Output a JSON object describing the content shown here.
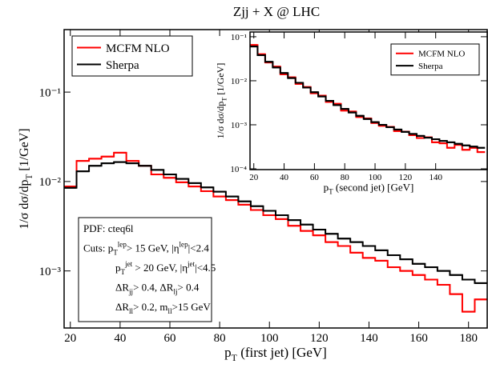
{
  "chart_data": [
    {
      "type": "histogram",
      "title": "Zjj + X @ LHC",
      "xlabel": [
        {
          "t": "p"
        },
        {
          "t": "T",
          "s": "sub"
        },
        {
          "t": " (first jet) [GeV]"
        }
      ],
      "ylabel": [
        {
          "t": "1/σ dσ/dp"
        },
        {
          "t": "T",
          "s": "sub"
        },
        {
          "t": "  [1/GeV]"
        }
      ],
      "bins": [
        17.5,
        22.5,
        27.5,
        32.5,
        37.5,
        42.5,
        47.5,
        52.5,
        57.5,
        62.5,
        67.5,
        72.5,
        77.5,
        82.5,
        87.5,
        92.5,
        97.5,
        102.5,
        107.5,
        112.5,
        117.5,
        122.5,
        127.5,
        132.5,
        137.5,
        142.5,
        147.5,
        152.5,
        157.5,
        162.5,
        167.5,
        172.5,
        177.5,
        182.5,
        187.5
      ],
      "series": [
        {
          "name": "MCFM NLO",
          "color": "#ff0000",
          "values": [
            0.0088,
            0.017,
            0.018,
            0.019,
            0.021,
            0.017,
            0.015,
            0.012,
            0.011,
            0.0098,
            0.0088,
            0.0078,
            0.0068,
            0.0062,
            0.0055,
            0.0048,
            0.0042,
            0.0038,
            0.0032,
            0.0028,
            0.0025,
            0.0021,
            0.0019,
            0.0016,
            0.0014,
            0.0013,
            0.0011,
            0.001,
            0.0009,
            0.0008,
            0.0007,
            0.00055,
            0.00035,
            0.00048
          ]
        },
        {
          "name": "Sherpa",
          "color": "#000000",
          "values": [
            0.0085,
            0.013,
            0.015,
            0.016,
            0.0165,
            0.016,
            0.015,
            0.0135,
            0.012,
            0.0107,
            0.0096,
            0.0086,
            0.0077,
            0.0068,
            0.006,
            0.0053,
            0.0047,
            0.0042,
            0.0037,
            0.0033,
            0.0029,
            0.0026,
            0.0023,
            0.0021,
            0.0019,
            0.0017,
            0.0015,
            0.00135,
            0.0012,
            0.0011,
            0.001,
            0.0009,
            0.0008,
            0.00073
          ]
        }
      ],
      "xlim": [
        17.5,
        187.5
      ],
      "xticks": [
        20,
        40,
        60,
        80,
        100,
        120,
        140,
        160,
        180
      ],
      "ylim": [
        0.00023,
        0.5
      ],
      "log_y": true,
      "yticks": [
        {
          "value": 0.1,
          "label": "10⁻¹"
        },
        {
          "value": 0.01,
          "label": "10⁻²"
        },
        {
          "value": 0.001,
          "label": "10⁻³"
        }
      ],
      "legend": "upper left",
      "annotation": [
        [
          {
            "t": "PDF: cteq6l"
          }
        ],
        [
          {
            "t": "Cuts: p"
          },
          {
            "t": "T",
            "s": "sub"
          },
          {
            "t": "lep",
            "s": "sup"
          },
          {
            "t": "> 15 GeV, |η"
          },
          {
            "t": "lep",
            "s": "sup"
          },
          {
            "t": "|<2.4"
          }
        ],
        [
          {
            "t": "p"
          },
          {
            "t": "T",
            "s": "sub"
          },
          {
            "t": "jet",
            "s": "sup"
          },
          {
            "t": " > 20 GeV, |η"
          },
          {
            "t": "jet",
            "s": "sup"
          },
          {
            "t": "|<4.5"
          }
        ],
        [
          {
            "t": "ΔR"
          },
          {
            "t": "jj",
            "s": "sub"
          },
          {
            "t": "> 0.4, ΔR"
          },
          {
            "t": "lj",
            "s": "sub"
          },
          {
            "t": "> 0.4"
          }
        ],
        [
          {
            "t": "ΔR"
          },
          {
            "t": "ll",
            "s": "sub"
          },
          {
            "t": "> 0.2, m"
          },
          {
            "t": "ll",
            "s": "sub"
          },
          {
            "t": ">15 GeV"
          }
        ]
      ]
    },
    {
      "type": "histogram",
      "xlabel": [
        {
          "t": "p"
        },
        {
          "t": "T",
          "s": "sub"
        },
        {
          "t": " (second jet) [GeV]"
        }
      ],
      "ylabel": [
        {
          "t": "1/σ dσ/dp"
        },
        {
          "t": "T",
          "s": "sub"
        },
        {
          "t": "  [1/GeV]"
        }
      ],
      "bins": [
        17.5,
        22.5,
        27.5,
        32.5,
        37.5,
        42.5,
        47.5,
        52.5,
        57.5,
        62.5,
        67.5,
        72.5,
        77.5,
        82.5,
        87.5,
        92.5,
        97.5,
        102.5,
        107.5,
        112.5,
        117.5,
        122.5,
        127.5,
        132.5,
        137.5,
        142.5,
        147.5,
        152.5,
        157.5,
        162.5,
        167.5,
        172.5
      ],
      "series": [
        {
          "name": "MCFM NLO",
          "color": "#ff0000",
          "values": [
            0.065,
            0.04,
            0.026,
            0.021,
            0.014,
            0.012,
            0.0085,
            0.0072,
            0.0052,
            0.0046,
            0.0033,
            0.003,
            0.0021,
            0.002,
            0.0015,
            0.0014,
            0.0011,
            0.00095,
            0.0009,
            0.00072,
            0.0007,
            0.00058,
            0.0005,
            0.00052,
            0.0004,
            0.00038,
            0.0003,
            0.00035,
            0.00027,
            0.0003,
            0.00024
          ]
        },
        {
          "name": "Sherpa",
          "color": "#000000",
          "values": [
            0.06,
            0.038,
            0.027,
            0.02,
            0.015,
            0.0115,
            0.009,
            0.007,
            0.0055,
            0.0044,
            0.0035,
            0.0028,
            0.0023,
            0.0019,
            0.0016,
            0.00135,
            0.00115,
            0.001,
            0.00088,
            0.00078,
            0.00069,
            0.00062,
            0.00056,
            0.00051,
            0.00047,
            0.00043,
            0.0004,
            0.00037,
            0.00034,
            0.00032,
            0.0003
          ]
        }
      ],
      "xlim": [
        17.5,
        174
      ],
      "xticks": [
        20,
        40,
        60,
        80,
        100,
        120,
        140
      ],
      "ylim": [
        9.6e-05,
        0.128
      ],
      "log_y": true,
      "yticks": [
        {
          "value": 0.1,
          "label": "10⁻¹"
        },
        {
          "value": 0.01,
          "label": "10⁻²"
        },
        {
          "value": 0.001,
          "label": "10⁻³"
        },
        {
          "value": 0.0001,
          "label": "10⁻⁴"
        }
      ],
      "legend": "upper right"
    }
  ]
}
